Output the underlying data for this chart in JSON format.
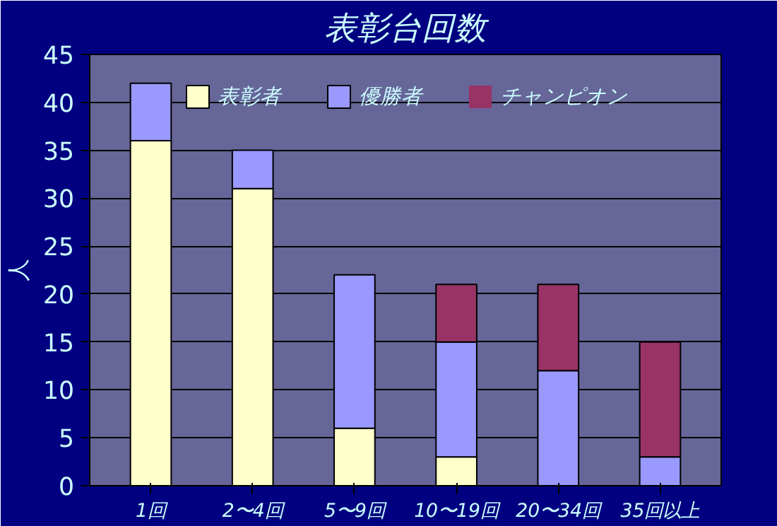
{
  "chart_data": {
    "type": "bar",
    "title": "表彰台回数",
    "ylabel": "人",
    "stacked": true,
    "categories": [
      "1回",
      "2〜4回",
      "5〜9回",
      "10〜19回",
      "20〜34回",
      "35回以上"
    ],
    "series": [
      {
        "name": "表彰者",
        "color": "#ffffcc",
        "values": [
          36,
          31,
          6,
          3,
          0,
          0
        ]
      },
      {
        "name": "優勝者",
        "color": "#9999ff",
        "values": [
          6,
          4,
          16,
          12,
          12,
          3
        ]
      },
      {
        "name": "チャンピオン",
        "color": "#993366",
        "values": [
          0,
          0,
          0,
          6,
          9,
          12
        ]
      }
    ],
    "ylim": [
      0,
      45
    ],
    "yticks": [
      0,
      5,
      10,
      15,
      20,
      25,
      30,
      35,
      40,
      45
    ],
    "grid": "y",
    "legend": "top"
  }
}
